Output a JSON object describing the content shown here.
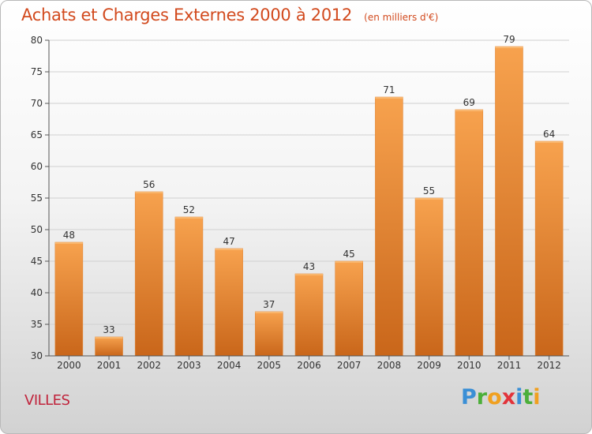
{
  "title": "Achats et Charges Externes 2000 à 2012",
  "unit_note": "(en milliers d'€)",
  "commune": "VILLES",
  "logo": {
    "text": "Proxiti",
    "letters": [
      "P",
      "r",
      "o",
      "x",
      "i",
      "t",
      "i"
    ]
  },
  "colors": {
    "title": "#d24a1e",
    "commune": "#c0243c",
    "bar_top": "#f7a24e",
    "bar_bottom": "#c9661a",
    "grid": "#d0d0d0"
  },
  "chart_data": {
    "type": "bar",
    "categories": [
      "2000",
      "2001",
      "2002",
      "2003",
      "2004",
      "2005",
      "2006",
      "2007",
      "2008",
      "2009",
      "2010",
      "2011",
      "2012"
    ],
    "values": [
      48,
      33,
      56,
      52,
      47,
      37,
      43,
      45,
      71,
      55,
      69,
      79,
      64
    ],
    "data_labels": [
      "48",
      "33",
      "56",
      "52",
      "47",
      "37",
      "43",
      "45",
      "71",
      "55",
      "69",
      "79",
      "64"
    ],
    "ylim": [
      30,
      80
    ],
    "yticks": [
      30,
      35,
      40,
      45,
      50,
      55,
      60,
      65,
      70,
      75,
      80
    ],
    "grid": true,
    "xlabel": "",
    "ylabel": ""
  }
}
